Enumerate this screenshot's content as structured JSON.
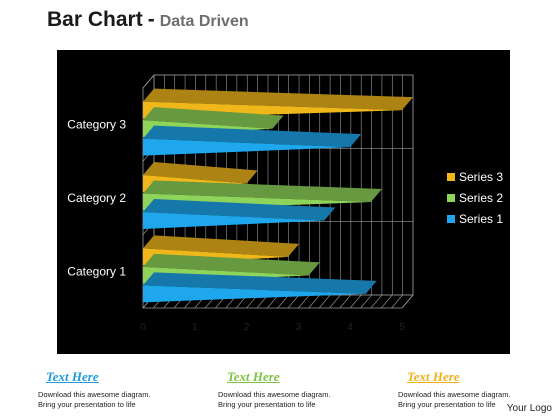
{
  "title": {
    "main": "Bar Chart",
    "dash": "-",
    "sub": "Data Driven"
  },
  "chart_data": {
    "type": "bar",
    "orientation": "horizontal",
    "style": "3d",
    "categories": [
      "Category 1",
      "Category 2",
      "Category 3"
    ],
    "series": [
      {
        "name": "Series 1",
        "color": "#1ea7ec",
        "values": [
          4.3,
          3.5,
          4.0
        ]
      },
      {
        "name": "Series 2",
        "color": "#8fd45a",
        "values": [
          3.2,
          4.4,
          2.5
        ]
      },
      {
        "name": "Series 3",
        "color": "#f0b71a",
        "values": [
          2.8,
          2.0,
          5.0
        ]
      }
    ],
    "xlim": [
      0,
      5
    ],
    "x_ticks": [
      "0",
      "1",
      "2",
      "3",
      "4",
      "5"
    ],
    "grid": true,
    "legend_position": "right",
    "background": "#000000"
  },
  "footer": [
    {
      "heading": "Text Here",
      "color": "#1f9ad6",
      "lines": [
        "Download this awesome diagram.",
        "Bring your presentation to life"
      ]
    },
    {
      "heading": "Text Here",
      "color": "#7dc242",
      "lines": [
        "Download this awesome diagram.",
        "Bring your presentation to life"
      ]
    },
    {
      "heading": "Text Here",
      "color": "#f0b21c",
      "lines": [
        "Download this awesome diagram.",
        "Bring your presentation to life"
      ]
    }
  ],
  "logo": "Your Logo"
}
